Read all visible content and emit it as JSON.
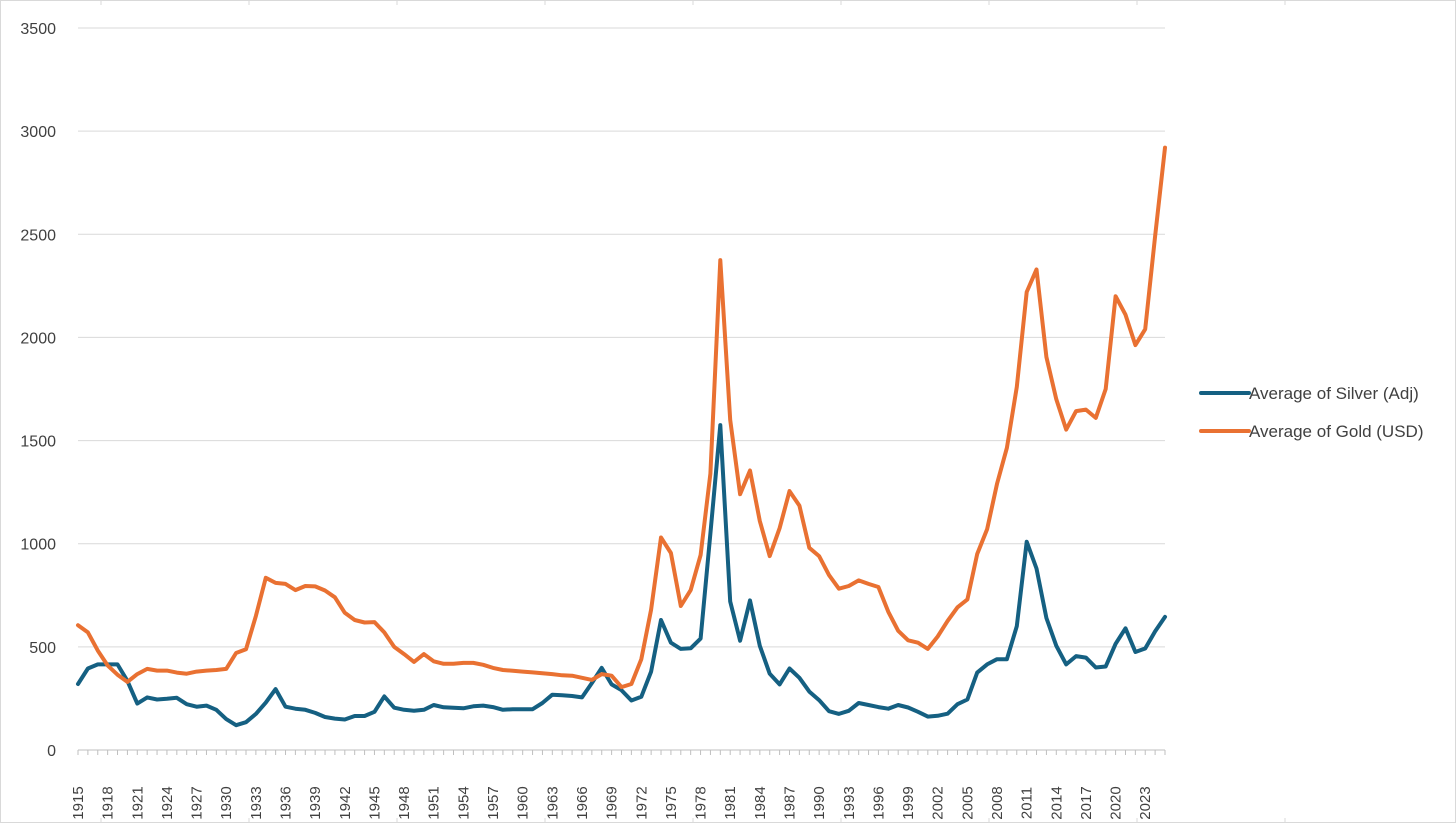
{
  "chart_data": {
    "type": "line",
    "title": "",
    "xlabel": "",
    "ylabel": "",
    "ylim": [
      0,
      3500
    ],
    "yticks": [
      0,
      500,
      1000,
      1500,
      2000,
      2500,
      3000,
      3500
    ],
    "grid": "horizontal",
    "legend_position": "right",
    "x": [
      1915,
      1916,
      1917,
      1918,
      1919,
      1920,
      1921,
      1922,
      1923,
      1924,
      1925,
      1926,
      1927,
      1928,
      1929,
      1930,
      1931,
      1932,
      1933,
      1934,
      1935,
      1936,
      1937,
      1938,
      1939,
      1940,
      1941,
      1942,
      1943,
      1944,
      1945,
      1946,
      1947,
      1948,
      1949,
      1950,
      1951,
      1952,
      1953,
      1954,
      1955,
      1956,
      1957,
      1958,
      1959,
      1960,
      1961,
      1962,
      1963,
      1964,
      1965,
      1966,
      1967,
      1968,
      1969,
      1970,
      1971,
      1972,
      1973,
      1974,
      1975,
      1976,
      1977,
      1978,
      1979,
      1980,
      1981,
      1982,
      1983,
      1984,
      1985,
      1986,
      1987,
      1988,
      1989,
      1990,
      1991,
      1992,
      1993,
      1994,
      1995,
      1996,
      1997,
      1998,
      1999,
      2000,
      2001,
      2002,
      2003,
      2004,
      2005,
      2006,
      2007,
      2008,
      2009,
      2010,
      2011,
      2012,
      2013,
      2014,
      2015,
      2016,
      2017,
      2018,
      2019,
      2020,
      2021,
      2022,
      2023,
      2024,
      2025
    ],
    "xtick_labels": [
      "1915",
      "1918",
      "1921",
      "1924",
      "1927",
      "1930",
      "1933",
      "1936",
      "1939",
      "1942",
      "1945",
      "1948",
      "1951",
      "1954",
      "1957",
      "1960",
      "1963",
      "1966",
      "1969",
      "1972",
      "1975",
      "1978",
      "1981",
      "1984",
      "1987",
      "1990",
      "1993",
      "1996",
      "1999",
      "2002",
      "2005",
      "2008",
      "2011",
      "2014",
      "2017",
      "2020",
      "2023"
    ],
    "series": [
      {
        "name": "Average of Silver (Adj)",
        "color": "#156082",
        "values": [
          320,
          395,
          415,
          415,
          415,
          335,
          225,
          255,
          245,
          248,
          253,
          222,
          210,
          215,
          195,
          150,
          120,
          135,
          175,
          230,
          295,
          210,
          200,
          195,
          180,
          160,
          152,
          148,
          165,
          165,
          185,
          260,
          205,
          195,
          190,
          195,
          218,
          207,
          205,
          202,
          212,
          215,
          208,
          195,
          198,
          198,
          198,
          228,
          268,
          265,
          262,
          255,
          325,
          398,
          318,
          290,
          240,
          258,
          380,
          630,
          520,
          490,
          493,
          540,
          1050,
          1575,
          720,
          530,
          725,
          505,
          370,
          318,
          395,
          350,
          283,
          242,
          188,
          175,
          190,
          228,
          218,
          208,
          200,
          218,
          206,
          185,
          162,
          166,
          176,
          222,
          245,
          375,
          415,
          440,
          440,
          600,
          1010,
          880,
          640,
          505,
          415,
          455,
          448,
          400,
          405,
          515,
          590,
          475,
          492,
          575,
          645
        ]
      },
      {
        "name": "Average of Gold (USD)",
        "color": "#E97132",
        "values": [
          605,
          570,
          482,
          410,
          365,
          330,
          368,
          393,
          385,
          385,
          375,
          370,
          380,
          385,
          388,
          393,
          470,
          488,
          650,
          835,
          810,
          805,
          775,
          795,
          793,
          773,
          740,
          665,
          630,
          618,
          620,
          570,
          500,
          465,
          427,
          465,
          430,
          418,
          418,
          422,
          422,
          413,
          398,
          388,
          384,
          380,
          376,
          372,
          368,
          362,
          360,
          350,
          340,
          368,
          360,
          305,
          320,
          440,
          680,
          1030,
          955,
          698,
          775,
          945,
          1340,
          2375,
          1600,
          1240,
          1355,
          1110,
          940,
          1075,
          1255,
          1185,
          980,
          940,
          848,
          782,
          795,
          822,
          805,
          790,
          670,
          578,
          532,
          520,
          490,
          550,
          626,
          692,
          730,
          950,
          1070,
          1290,
          1465,
          1760,
          2220,
          2330,
          1905,
          1700,
          1553,
          1643,
          1650,
          1610,
          1750,
          2200,
          2110,
          1963,
          2040,
          2490,
          2920
        ]
      }
    ]
  }
}
